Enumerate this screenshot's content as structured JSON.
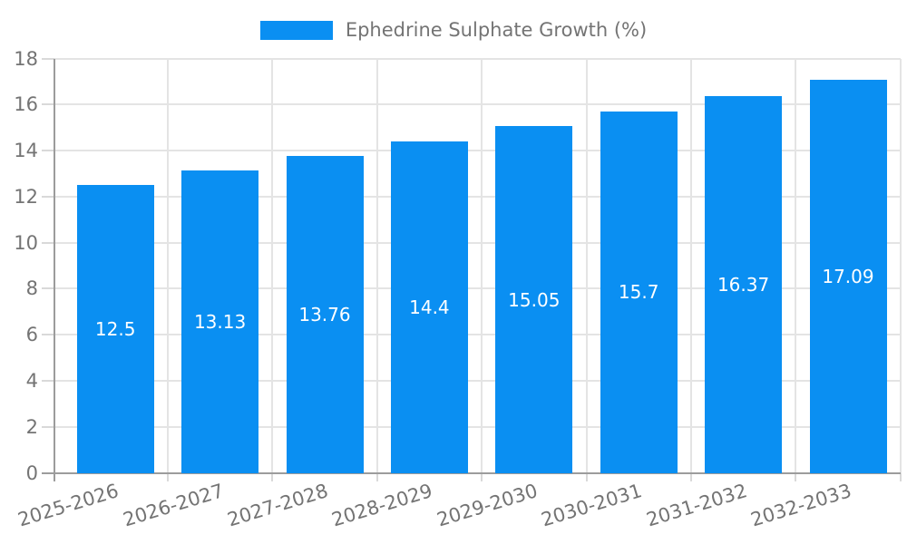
{
  "legend": {
    "label": "Ephedrine Sulphate Growth (%)"
  },
  "chart_data": {
    "type": "bar",
    "title": "",
    "categories": [
      "2025-2026",
      "2026-2027",
      "2027-2028",
      "2028-2029",
      "2029-2030",
      "2030-2031",
      "2031-2032",
      "2032-2033"
    ],
    "series": [
      {
        "name": "Ephedrine Sulphate Growth (%)",
        "values": [
          12.5,
          13.13,
          13.76,
          14.4,
          15.05,
          15.7,
          16.37,
          17.09
        ]
      }
    ],
    "value_labels": [
      "12.5",
      "13.13",
      "13.76",
      "14.4",
      "15.05",
      "15.7",
      "16.37",
      "17.09"
    ],
    "xlabel": "",
    "ylabel": "",
    "ylim": [
      0,
      18
    ],
    "yticks": [
      0,
      2,
      4,
      6,
      8,
      10,
      12,
      14,
      16,
      18
    ],
    "grid": true,
    "legend_position": "top-center",
    "x_label_rotation_deg": -17,
    "colors": {
      "bar": "#0a8ff2",
      "value_label": "#ffffff",
      "axis_text": "#747474",
      "grid_line": "#e4e4e4",
      "tick_line": "#d9d9d9",
      "axis_line": "#9c9c9c",
      "background": "#ffffff"
    }
  }
}
